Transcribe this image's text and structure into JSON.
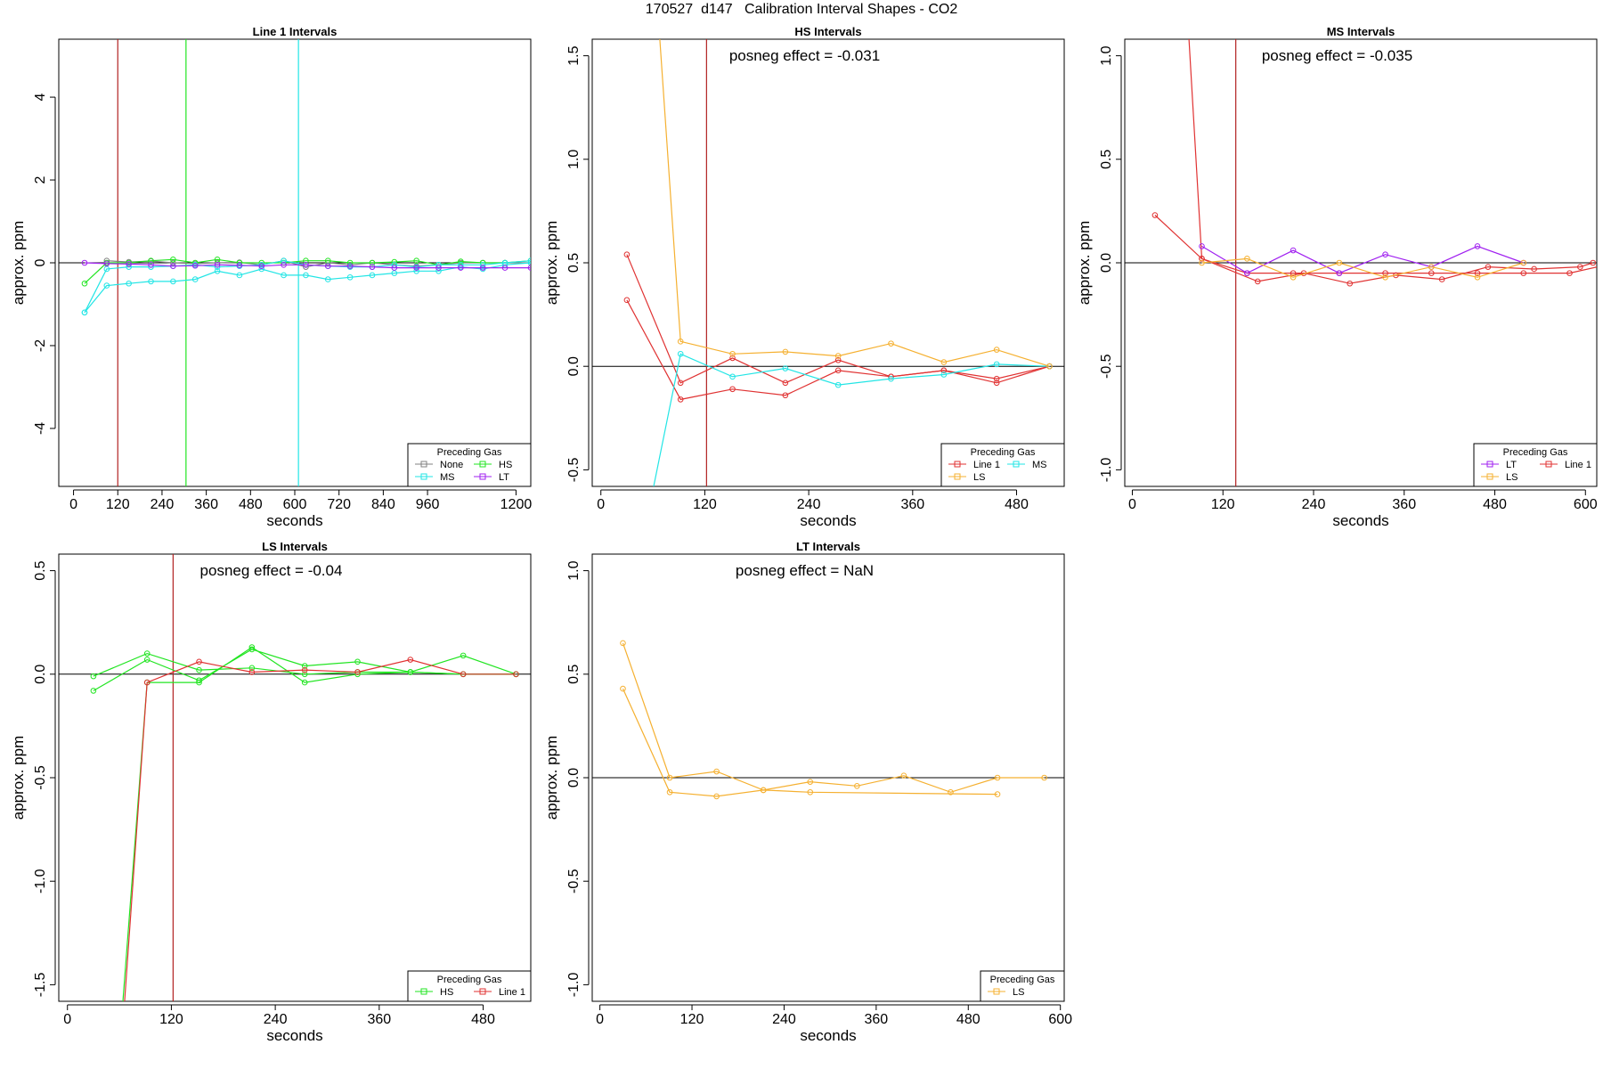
{
  "page": {
    "title": "170527  d147   Calibration Interval Shapes - CO2"
  },
  "colors": {
    "None": "#808080",
    "MS": "#22e5e5",
    "HS": "#22e522",
    "LT": "#a020f0",
    "Line 1": "#e03232",
    "LS": "#f5b030",
    "redline": "#b22222"
  },
  "chart_data": [
    {
      "type": "line",
      "title": "Line 1 Intervals",
      "xlabel": "seconds",
      "ylabel": "approx. ppm",
      "xlim": [
        -40,
        1240
      ],
      "ylim": [
        -5.4,
        5.4
      ],
      "xticks": [
        0,
        120,
        240,
        360,
        480,
        600,
        720,
        840,
        960,
        1200
      ],
      "yticks": [
        -4,
        -2,
        0,
        2,
        4
      ],
      "annotation": "",
      "vlines": [
        {
          "x": 120,
          "color": "redline"
        },
        {
          "x": 305,
          "color": "HS"
        },
        {
          "x": 610,
          "color": "MS"
        }
      ],
      "legend": {
        "title": "Preceding Gas",
        "placement": "bottom-right",
        "columns": 2,
        "entries": [
          "None",
          "HS",
          "MS",
          "LT"
        ]
      },
      "series": [
        {
          "name": "None",
          "color": "None",
          "x": [
            90,
            150,
            210,
            270,
            330,
            390,
            450,
            510,
            570,
            630,
            690,
            750,
            810,
            870,
            930,
            990,
            1050,
            1110,
            1170,
            1240
          ],
          "y": [
            0.05,
            0.02,
            0.04,
            0.0,
            -0.02,
            0.0,
            0.01,
            -0.05,
            0.05,
            -0.1,
            0.0,
            -0.05,
            0.0,
            -0.05,
            -0.08,
            -0.05,
            0.0,
            0.0,
            0.0,
            0.0
          ]
        },
        {
          "name": "HS",
          "color": "HS",
          "x": [
            30,
            90,
            150,
            210,
            270,
            330,
            390,
            450,
            510,
            570,
            630,
            690,
            750,
            810,
            870,
            930,
            990,
            1050,
            1110,
            1170,
            1240
          ],
          "y": [
            -0.5,
            0.0,
            0.0,
            0.05,
            0.08,
            0.0,
            0.08,
            0.0,
            0.0,
            0.0,
            0.05,
            0.05,
            0.0,
            0.0,
            0.02,
            0.05,
            -0.05,
            0.03,
            0.0,
            0.0,
            0.05
          ]
        },
        {
          "name": "MS",
          "color": "MS",
          "x": [
            30,
            90,
            150,
            210,
            270,
            330,
            390,
            450,
            510,
            570,
            630,
            690,
            750,
            810,
            870,
            930,
            990,
            1050,
            1110,
            1170,
            1240
          ],
          "y": [
            -1.2,
            -0.55,
            -0.5,
            -0.45,
            -0.45,
            -0.4,
            -0.2,
            -0.3,
            -0.15,
            -0.3,
            -0.3,
            -0.4,
            -0.35,
            -0.3,
            -0.25,
            -0.2,
            -0.2,
            -0.1,
            -0.15,
            -0.05,
            0.0
          ]
        },
        {
          "name": "MS",
          "color": "MS",
          "x": [
            30,
            90,
            150,
            210,
            270,
            330,
            390,
            450,
            510,
            570,
            630,
            690,
            750,
            810,
            870,
            930,
            990,
            1050,
            1110,
            1170,
            1240
          ],
          "y": [
            -1.2,
            -0.15,
            -0.1,
            -0.1,
            -0.08,
            -0.05,
            -0.1,
            -0.08,
            -0.05,
            0.05,
            -0.05,
            -0.08,
            -0.1,
            -0.1,
            -0.05,
            -0.1,
            -0.05,
            -0.05,
            -0.05,
            0.0,
            0.05
          ]
        },
        {
          "name": "LT",
          "color": "LT",
          "x": [
            30,
            90,
            150,
            210,
            270,
            330,
            390,
            450,
            510,
            570,
            630,
            690,
            750,
            810,
            870,
            930,
            990,
            1050,
            1110,
            1170,
            1240
          ],
          "y": [
            0.0,
            -0.02,
            -0.03,
            -0.05,
            -0.08,
            -0.07,
            -0.05,
            -0.06,
            -0.08,
            -0.05,
            -0.05,
            -0.08,
            -0.08,
            -0.1,
            -0.12,
            -0.12,
            -0.12,
            -0.12,
            -0.12,
            -0.12,
            -0.12
          ]
        }
      ]
    },
    {
      "type": "line",
      "title": "HS Intervals",
      "xlabel": "seconds",
      "ylabel": "approx. ppm",
      "xlim": [
        -10,
        535
      ],
      "ylim": [
        -0.58,
        1.58
      ],
      "xticks": [
        0,
        120,
        240,
        360,
        480
      ],
      "yticks": [
        -0.5,
        0.0,
        0.5,
        1.0,
        1.5
      ],
      "annotation": "posneg effect = -0.031",
      "vlines": [
        {
          "x": 122,
          "color": "redline"
        }
      ],
      "legend": {
        "title": "Preceding Gas",
        "placement": "bottom-right",
        "columns": 2,
        "entries": [
          "Line 1",
          "MS",
          "LS"
        ]
      },
      "series": [
        {
          "name": "Line 1",
          "color": "Line 1",
          "x": [
            30,
            92,
            152,
            213,
            274,
            335,
            396,
            457,
            518
          ],
          "y": [
            0.54,
            -0.08,
            0.04,
            -0.08,
            0.03,
            -0.05,
            -0.02,
            -0.06,
            0.0
          ]
        },
        {
          "name": "Line 1",
          "color": "Line 1",
          "x": [
            30,
            92,
            152,
            213,
            274,
            335,
            396,
            457,
            518
          ],
          "y": [
            0.32,
            -0.16,
            -0.11,
            -0.14,
            -0.02,
            -0.05,
            -0.02,
            -0.08,
            0.0
          ]
        },
        {
          "name": "MS",
          "color": "MS",
          "x": [
            61,
            92,
            152,
            213,
            274,
            335,
            396,
            457,
            518
          ],
          "y": [
            -0.58,
            0.06,
            -0.05,
            -0.01,
            -0.09,
            -0.06,
            -0.04,
            0.01,
            0.0
          ]
        },
        {
          "name": "LS",
          "color": "LS",
          "x": [
            68,
            92,
            152,
            213,
            274,
            335,
            396,
            457,
            518
          ],
          "y": [
            1.58,
            0.12,
            0.06,
            0.07,
            0.05,
            0.11,
            0.02,
            0.08,
            0.0
          ]
        }
      ]
    },
    {
      "type": "line",
      "title": "MS Intervals",
      "xlabel": "seconds",
      "ylabel": "approx. ppm",
      "xlim": [
        -10,
        615
      ],
      "ylim": [
        -1.08,
        1.08
      ],
      "xticks": [
        0,
        120,
        240,
        360,
        480,
        600
      ],
      "yticks": [
        -1.0,
        -0.5,
        0.0,
        0.5,
        1.0
      ],
      "annotation": "posneg effect = -0.035",
      "vlines": [
        {
          "x": 137,
          "color": "redline"
        }
      ],
      "legend": {
        "title": "Preceding Gas",
        "placement": "bottom-right",
        "columns": 2,
        "entries": [
          "LT",
          "Line 1",
          "LS"
        ]
      },
      "series": [
        {
          "name": "Line 1",
          "color": "Line 1",
          "x": [
            75,
            92,
            152,
            213,
            274,
            335,
            396,
            457,
            518,
            579,
            640
          ],
          "y": [
            1.08,
            0.02,
            -0.05,
            -0.05,
            -0.05,
            -0.05,
            -0.05,
            -0.05,
            -0.05,
            -0.05,
            0.0
          ]
        },
        {
          "name": "Line 1",
          "color": "Line 1",
          "x": [
            30,
            92,
            166,
            227,
            288,
            349,
            410,
            471,
            532,
            593,
            610
          ],
          "y": [
            0.23,
            0.02,
            -0.09,
            -0.05,
            -0.1,
            -0.06,
            -0.08,
            -0.02,
            -0.03,
            -0.02,
            0.0
          ]
        },
        {
          "name": "LT",
          "color": "LT",
          "x": [
            92,
            152,
            213,
            274,
            335,
            396,
            457,
            518
          ],
          "y": [
            0.08,
            -0.05,
            0.06,
            -0.05,
            0.04,
            -0.02,
            0.08,
            0.0
          ]
        },
        {
          "name": "LS",
          "color": "LS",
          "x": [
            92,
            152,
            213,
            274,
            335,
            396,
            457,
            518
          ],
          "y": [
            0.0,
            0.02,
            -0.07,
            0.0,
            -0.07,
            -0.02,
            -0.07,
            0.0
          ]
        }
      ]
    },
    {
      "type": "line",
      "title": "LS Intervals",
      "xlabel": "seconds",
      "ylabel": "approx. ppm",
      "xlim": [
        -10,
        535
      ],
      "ylim": [
        -1.58,
        0.58
      ],
      "xticks": [
        0,
        120,
        240,
        360,
        480
      ],
      "yticks": [
        -1.5,
        -1.0,
        -0.5,
        0.0,
        0.5
      ],
      "annotation": "posneg effect = -0.04",
      "vlines": [
        {
          "x": 122,
          "color": "redline"
        }
      ],
      "legend": {
        "title": "Preceding Gas",
        "placement": "bottom-right",
        "columns": 2,
        "entries": [
          "HS",
          "Line 1"
        ]
      },
      "series": [
        {
          "name": "HS",
          "color": "HS",
          "x": [
            30,
            92,
            152,
            213,
            274,
            335,
            396,
            457,
            518
          ],
          "y": [
            -0.08,
            0.07,
            -0.03,
            0.12,
            0.04,
            0.06,
            0.01,
            0.09,
            0.0
          ]
        },
        {
          "name": "HS",
          "color": "HS",
          "x": [
            30,
            92,
            152,
            213,
            274,
            335,
            396,
            457,
            518
          ],
          "y": [
            -0.01,
            0.1,
            0.02,
            0.03,
            0.0,
            0.01,
            0.01,
            0.0,
            0.0
          ]
        },
        {
          "name": "HS",
          "color": "HS",
          "x": [
            64,
            92,
            152,
            213,
            274,
            335,
            396,
            457,
            518
          ],
          "y": [
            -1.58,
            -0.04,
            -0.04,
            0.13,
            -0.04,
            0.0,
            0.01,
            0.0,
            0.0
          ]
        },
        {
          "name": "Line 1",
          "color": "Line 1",
          "x": [
            66,
            92,
            152,
            213,
            274,
            335,
            396,
            457,
            518
          ],
          "y": [
            -1.58,
            -0.04,
            0.06,
            0.01,
            0.02,
            0.01,
            0.07,
            0.0,
            0.0
          ]
        }
      ]
    },
    {
      "type": "line",
      "title": "LT Intervals",
      "xlabel": "seconds",
      "ylabel": "approx. ppm",
      "xlim": [
        -10,
        605
      ],
      "ylim": [
        -1.08,
        1.08
      ],
      "xticks": [
        0,
        120,
        240,
        360,
        480,
        600
      ],
      "yticks": [
        -1.0,
        -0.5,
        0.0,
        0.5,
        1.0
      ],
      "annotation": "posneg effect = NaN",
      "vlines": [],
      "legend": {
        "title": "Preceding Gas",
        "placement": "bottom-right",
        "columns": 1,
        "entries": [
          "LS"
        ]
      },
      "series": [
        {
          "name": "LS",
          "color": "LS",
          "x": [
            30,
            91,
            152,
            213,
            274,
            335,
            396,
            457,
            518,
            579
          ],
          "y": [
            0.65,
            0.0,
            0.03,
            -0.06,
            -0.02,
            -0.04,
            0.01,
            -0.07,
            0.0,
            0.0
          ]
        },
        {
          "name": "LS",
          "color": "LS",
          "x": [
            30,
            91,
            152,
            213,
            274,
            518
          ],
          "y": [
            0.43,
            -0.07,
            -0.09,
            -0.06,
            -0.07,
            -0.08
          ]
        }
      ]
    }
  ]
}
